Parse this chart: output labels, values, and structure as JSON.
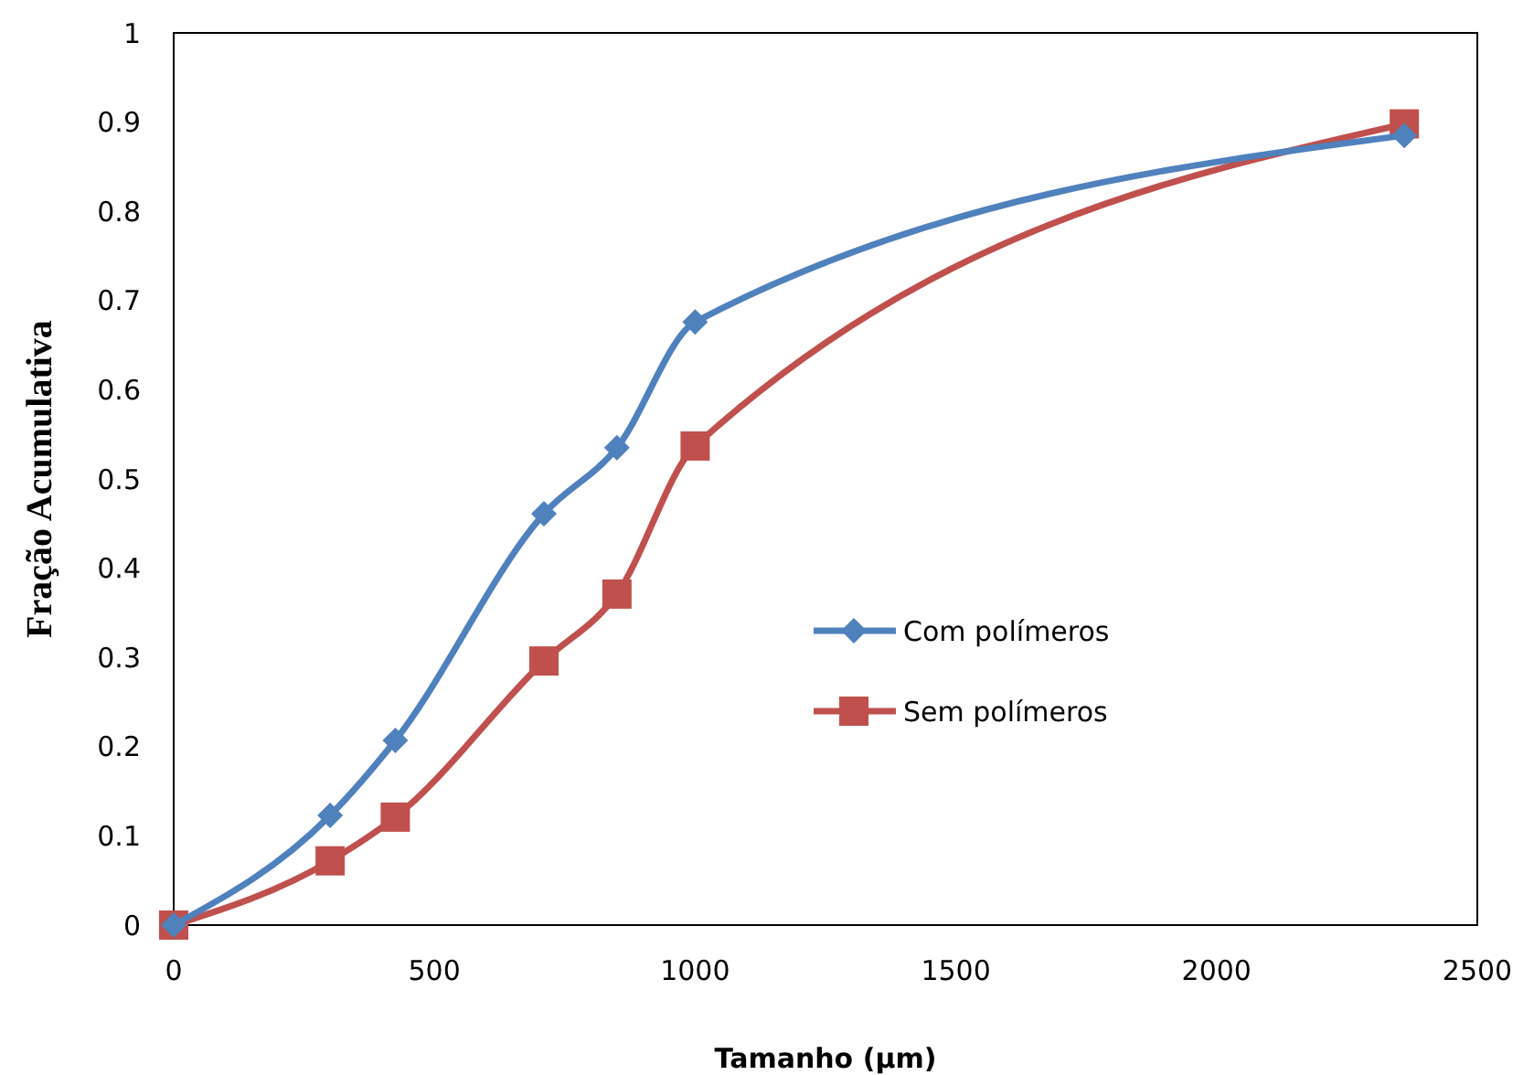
{
  "chart_data": {
    "type": "line",
    "xlabel": "Tamanho (µm)",
    "ylabel": "Fração Acumulativa",
    "xlim": [
      0,
      2500
    ],
    "xticks": [
      0,
      500,
      1000,
      1500,
      2000,
      2500
    ],
    "ylim": [
      0,
      1
    ],
    "yticks": [
      0,
      0.1,
      0.2,
      0.3,
      0.4,
      0.5,
      0.6,
      0.7,
      0.8,
      0.9,
      1
    ],
    "x": [
      0,
      300,
      425,
      710,
      850,
      1000,
      2360
    ],
    "series": [
      {
        "name": "Com polímeros",
        "color": "#4f81bd",
        "marker": "diamond",
        "values": [
          0,
          0.123,
          0.207,
          0.461,
          0.535,
          0.676,
          0.885
        ]
      },
      {
        "name": "Sem polímeros",
        "color": "#c0504d",
        "marker": "square",
        "values": [
          0,
          0.072,
          0.121,
          0.296,
          0.371,
          0.537,
          0.898
        ]
      }
    ],
    "grid": false,
    "legend": "right",
    "line_style": "solid"
  }
}
